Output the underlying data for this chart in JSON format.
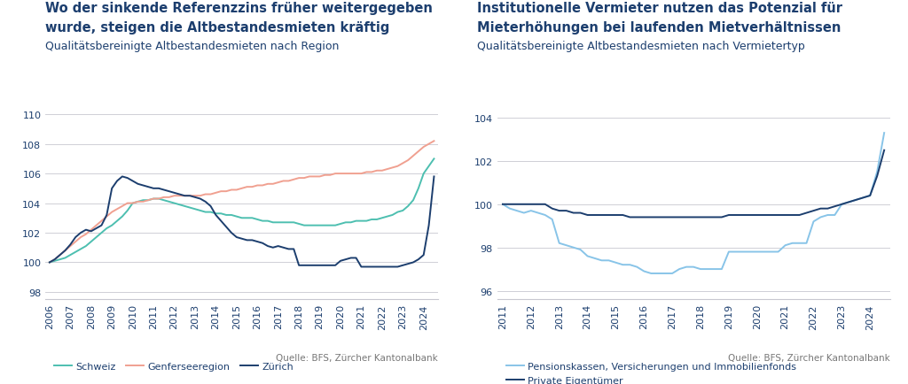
{
  "chart1": {
    "title_line1": "Wo der sinkende Referenzzins früher weitergegeben",
    "title_line2": "wurde, steigen die Altbestandesmieten kräftig",
    "subtitle": "Qualitätsbereinigte Altbestandesmieten nach Region",
    "source": "Quelle: BFS, Zürcher Kantonalbank",
    "ylim": [
      97.5,
      110.5
    ],
    "yticks": [
      98,
      100,
      102,
      104,
      106,
      108,
      110
    ],
    "years": [
      2006.0,
      2006.25,
      2006.5,
      2006.75,
      2007.0,
      2007.25,
      2007.5,
      2007.75,
      2008.0,
      2008.25,
      2008.5,
      2008.75,
      2009.0,
      2009.25,
      2009.5,
      2009.75,
      2010.0,
      2010.25,
      2010.5,
      2010.75,
      2011.0,
      2011.25,
      2011.5,
      2011.75,
      2012.0,
      2012.25,
      2012.5,
      2012.75,
      2013.0,
      2013.25,
      2013.5,
      2013.75,
      2014.0,
      2014.25,
      2014.5,
      2014.75,
      2015.0,
      2015.25,
      2015.5,
      2015.75,
      2016.0,
      2016.25,
      2016.5,
      2016.75,
      2017.0,
      2017.25,
      2017.5,
      2017.75,
      2018.0,
      2018.25,
      2018.5,
      2018.75,
      2019.0,
      2019.25,
      2019.5,
      2019.75,
      2020.0,
      2020.25,
      2020.5,
      2020.75,
      2021.0,
      2021.25,
      2021.5,
      2021.75,
      2022.0,
      2022.25,
      2022.5,
      2022.75,
      2023.0,
      2023.25,
      2023.5,
      2023.75,
      2024.0,
      2024.25,
      2024.5
    ],
    "schweiz": [
      100.0,
      100.1,
      100.2,
      100.3,
      100.5,
      100.7,
      100.9,
      101.1,
      101.4,
      101.7,
      102.0,
      102.3,
      102.5,
      102.8,
      103.1,
      103.5,
      104.0,
      104.1,
      104.2,
      104.2,
      104.3,
      104.3,
      104.2,
      104.1,
      104.0,
      103.9,
      103.8,
      103.7,
      103.6,
      103.5,
      103.4,
      103.4,
      103.3,
      103.3,
      103.2,
      103.2,
      103.1,
      103.0,
      103.0,
      103.0,
      102.9,
      102.8,
      102.8,
      102.7,
      102.7,
      102.7,
      102.7,
      102.7,
      102.6,
      102.5,
      102.5,
      102.5,
      102.5,
      102.5,
      102.5,
      102.5,
      102.6,
      102.7,
      102.7,
      102.8,
      102.8,
      102.8,
      102.9,
      102.9,
      103.0,
      103.1,
      103.2,
      103.4,
      103.5,
      103.8,
      104.2,
      105.0,
      106.0,
      106.5,
      107.0
    ],
    "genferseeregion": [
      100.0,
      100.2,
      100.5,
      100.8,
      101.1,
      101.4,
      101.7,
      101.9,
      102.2,
      102.5,
      102.8,
      103.1,
      103.4,
      103.6,
      103.8,
      104.0,
      104.0,
      104.1,
      104.1,
      104.2,
      104.3,
      104.3,
      104.4,
      104.4,
      104.5,
      104.5,
      104.5,
      104.5,
      104.5,
      104.5,
      104.6,
      104.6,
      104.7,
      104.8,
      104.8,
      104.9,
      104.9,
      105.0,
      105.1,
      105.1,
      105.2,
      105.2,
      105.3,
      105.3,
      105.4,
      105.5,
      105.5,
      105.6,
      105.7,
      105.7,
      105.8,
      105.8,
      105.8,
      105.9,
      105.9,
      106.0,
      106.0,
      106.0,
      106.0,
      106.0,
      106.0,
      106.1,
      106.1,
      106.2,
      106.2,
      106.3,
      106.4,
      106.5,
      106.7,
      106.9,
      107.2,
      107.5,
      107.8,
      108.0,
      108.2
    ],
    "zuerich": [
      100.0,
      100.2,
      100.5,
      100.8,
      101.2,
      101.7,
      102.0,
      102.2,
      102.1,
      102.3,
      102.5,
      103.2,
      105.0,
      105.5,
      105.8,
      105.7,
      105.5,
      105.3,
      105.2,
      105.1,
      105.0,
      105.0,
      104.9,
      104.8,
      104.7,
      104.6,
      104.5,
      104.5,
      104.4,
      104.3,
      104.1,
      103.8,
      103.2,
      102.8,
      102.4,
      102.0,
      101.7,
      101.6,
      101.5,
      101.5,
      101.4,
      101.3,
      101.1,
      101.0,
      101.1,
      101.0,
      100.9,
      100.9,
      99.8,
      99.8,
      99.8,
      99.8,
      99.8,
      99.8,
      99.8,
      99.8,
      100.1,
      100.2,
      100.3,
      100.3,
      99.7,
      99.7,
      99.7,
      99.7,
      99.7,
      99.7,
      99.7,
      99.7,
      99.8,
      99.9,
      100.0,
      100.2,
      100.5,
      102.5,
      105.8
    ],
    "colors": {
      "schweiz": "#4dbfb0",
      "genferseeregion": "#f0a090",
      "zuerich": "#1c3e6e"
    },
    "legend": [
      "Schweiz",
      "Genferseeregion",
      "Zürich"
    ]
  },
  "chart2": {
    "title_line1": "Institutionelle Vermieter nutzen das Potenzial für",
    "title_line2": "Mieterhöhungen bei laufenden Mietverhältnissen",
    "subtitle": "Qualitätsbereinigte Altbestandesmieten nach Vermietertyp",
    "source": "Quelle: BFS, Zürcher Kantonalbank",
    "ylim": [
      95.6,
      104.5
    ],
    "yticks": [
      96,
      98,
      100,
      102,
      104
    ],
    "years": [
      2011.0,
      2011.25,
      2011.5,
      2011.75,
      2012.0,
      2012.25,
      2012.5,
      2012.75,
      2013.0,
      2013.25,
      2013.5,
      2013.75,
      2014.0,
      2014.25,
      2014.5,
      2014.75,
      2015.0,
      2015.25,
      2015.5,
      2015.75,
      2016.0,
      2016.25,
      2016.5,
      2016.75,
      2017.0,
      2017.25,
      2017.5,
      2017.75,
      2018.0,
      2018.25,
      2018.5,
      2018.75,
      2019.0,
      2019.25,
      2019.5,
      2019.75,
      2020.0,
      2020.25,
      2020.5,
      2020.75,
      2021.0,
      2021.25,
      2021.5,
      2021.75,
      2022.0,
      2022.25,
      2022.5,
      2022.75,
      2023.0,
      2023.25,
      2023.5,
      2023.75,
      2024.0,
      2024.25,
      2024.5
    ],
    "pensionskassen": [
      100.0,
      99.8,
      99.7,
      99.6,
      99.7,
      99.6,
      99.5,
      99.3,
      98.2,
      98.1,
      98.0,
      97.9,
      97.6,
      97.5,
      97.4,
      97.4,
      97.3,
      97.2,
      97.2,
      97.1,
      96.9,
      96.8,
      96.8,
      96.8,
      96.8,
      97.0,
      97.1,
      97.1,
      97.0,
      97.0,
      97.0,
      97.0,
      97.8,
      97.8,
      97.8,
      97.8,
      97.8,
      97.8,
      97.8,
      97.8,
      98.1,
      98.2,
      98.2,
      98.2,
      99.2,
      99.4,
      99.5,
      99.5,
      100.0,
      100.1,
      100.2,
      100.3,
      100.4,
      101.5,
      103.3
    ],
    "private": [
      100.0,
      100.0,
      100.0,
      100.0,
      100.0,
      100.0,
      100.0,
      99.8,
      99.7,
      99.7,
      99.6,
      99.6,
      99.5,
      99.5,
      99.5,
      99.5,
      99.5,
      99.5,
      99.4,
      99.4,
      99.4,
      99.4,
      99.4,
      99.4,
      99.4,
      99.4,
      99.4,
      99.4,
      99.4,
      99.4,
      99.4,
      99.4,
      99.5,
      99.5,
      99.5,
      99.5,
      99.5,
      99.5,
      99.5,
      99.5,
      99.5,
      99.5,
      99.5,
      99.6,
      99.7,
      99.8,
      99.8,
      99.9,
      100.0,
      100.1,
      100.2,
      100.3,
      100.4,
      101.3,
      102.5
    ],
    "colors": {
      "pensionskassen": "#88c4e8",
      "private": "#1c3e6e"
    },
    "legend": [
      "Pensionskassen, Versicherungen und Immobilienfonds",
      "Private Eigentümer"
    ]
  },
  "background_color": "#ffffff",
  "title_color": "#1c3e6e",
  "grid_color": "#c8c8d0",
  "source_color": "#777777",
  "title_fontsize": 10.5,
  "subtitle_fontsize": 9.0,
  "tick_fontsize": 8.0,
  "legend_fontsize": 8.0,
  "source_fontsize": 7.5
}
